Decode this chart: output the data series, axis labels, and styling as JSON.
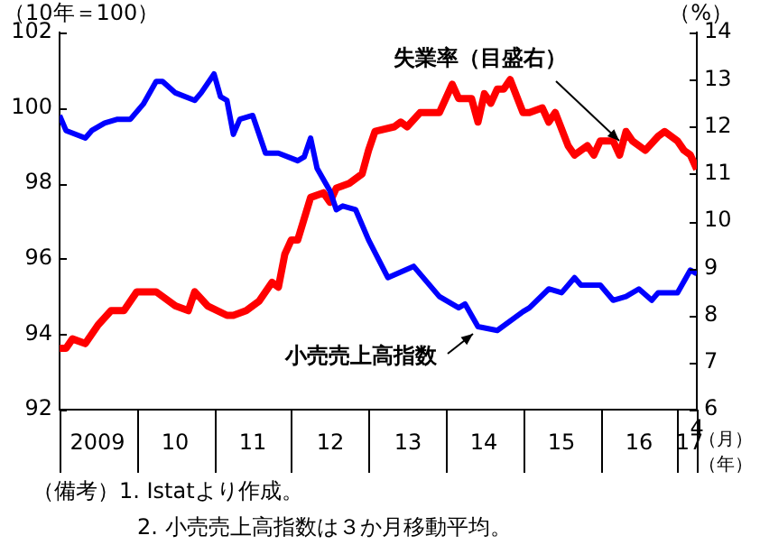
{
  "chart_data": {
    "type": "line",
    "ylabel": "（10年＝100）",
    "y2label": "（%）",
    "xlim": [
      "2009-01",
      "2017-04"
    ],
    "xticks": [
      {
        "value": "2009-07",
        "label": "2009"
      },
      {
        "value": "2010-07",
        "label": "10"
      },
      {
        "value": "2011-07",
        "label": "11"
      },
      {
        "value": "2012-07",
        "label": "12"
      },
      {
        "value": "2013-07",
        "label": "13"
      },
      {
        "value": "2014-07",
        "label": "14"
      },
      {
        "value": "2015-07",
        "label": "15"
      },
      {
        "value": "2016-07",
        "label": "16"
      },
      {
        "value": "2017-03",
        "label": "17"
      }
    ],
    "ylim": [
      92,
      102
    ],
    "yticks": [
      92,
      94,
      96,
      98,
      100,
      102
    ],
    "y2lim": [
      6,
      14
    ],
    "y2ticks": [
      6,
      7,
      8,
      9,
      10,
      11,
      12,
      13,
      14
    ],
    "grid": false,
    "legend": false,
    "marker": "none",
    "series": [
      {
        "name": "小売売上高指数",
        "color": "#0000ff",
        "x": [
          "2009-01",
          "2009-02",
          "2009-05",
          "2009-06",
          "2009-08",
          "2009-10",
          "2009-12",
          "2010-02",
          "2010-04",
          "2010-05",
          "2010-07",
          "2010-10",
          "2010-11",
          "2011-01",
          "2011-02",
          "2011-03",
          "2011-04",
          "2011-05",
          "2011-07",
          "2011-09",
          "2011-11",
          "2012-02",
          "2012-03",
          "2012-04",
          "2012-05",
          "2012-07",
          "2012-08",
          "2012-09",
          "2012-11",
          "2013-01",
          "2013-04",
          "2013-08",
          "2013-12",
          "2014-03",
          "2014-04",
          "2014-06",
          "2014-09",
          "2015-01",
          "2015-02",
          "2015-05",
          "2015-07",
          "2015-09",
          "2015-10",
          "2016-01",
          "2016-03",
          "2016-05",
          "2016-07",
          "2016-09",
          "2016-10",
          "2017-01",
          "2017-03",
          "2017-04"
        ],
        "values": [
          99.8,
          99.4,
          99.2,
          99.4,
          99.6,
          99.7,
          99.7,
          100.1,
          100.7,
          100.7,
          100.4,
          100.2,
          100.4,
          100.9,
          100.3,
          100.2,
          99.3,
          99.7,
          99.8,
          98.8,
          98.8,
          98.6,
          98.7,
          99.2,
          98.4,
          97.8,
          97.3,
          97.4,
          97.3,
          96.5,
          95.5,
          95.8,
          95.0,
          94.7,
          94.8,
          94.2,
          94.1,
          94.6,
          94.7,
          95.2,
          95.1,
          95.5,
          95.3,
          95.3,
          94.9,
          95.0,
          95.2,
          94.9,
          95.1,
          95.1,
          95.7,
          95.6
        ]
      },
      {
        "name": "失業率（目盛右）",
        "color": "#ff0000",
        "axis": "y2",
        "x": [
          "2009-01",
          "2009-02",
          "2009-03",
          "2009-05",
          "2009-07",
          "2009-09",
          "2009-11",
          "2010-01",
          "2010-02",
          "2010-04",
          "2010-07",
          "2010-09",
          "2010-10",
          "2010-12",
          "2011-03",
          "2011-04",
          "2011-06",
          "2011-08",
          "2011-10",
          "2011-11",
          "2011-12",
          "2012-01",
          "2012-02",
          "2012-04",
          "2012-06",
          "2012-07",
          "2012-08",
          "2012-10",
          "2012-12",
          "2013-01",
          "2013-02",
          "2013-05",
          "2013-06",
          "2013-07",
          "2013-09",
          "2013-12",
          "2014-02",
          "2014-03",
          "2014-05",
          "2014-06",
          "2014-07",
          "2014-08",
          "2014-09",
          "2014-10",
          "2014-11",
          "2015-01",
          "2015-02",
          "2015-04",
          "2015-05",
          "2015-06",
          "2015-08",
          "2015-09",
          "2015-11",
          "2015-12",
          "2016-01",
          "2016-03",
          "2016-04",
          "2016-05",
          "2016-06",
          "2016-08",
          "2016-10",
          "2016-11",
          "2017-01",
          "2017-02",
          "2017-03",
          "2017-04"
        ],
        "values": [
          7.3,
          7.3,
          7.5,
          7.4,
          7.8,
          8.1,
          8.1,
          8.5,
          8.5,
          8.5,
          8.2,
          8.1,
          8.5,
          8.2,
          8.0,
          8.0,
          8.1,
          8.3,
          8.7,
          8.6,
          9.3,
          9.6,
          9.6,
          10.5,
          10.6,
          10.4,
          10.7,
          10.8,
          11.0,
          11.5,
          11.9,
          12.0,
          12.1,
          12.0,
          12.3,
          12.3,
          12.9,
          12.6,
          12.6,
          12.1,
          12.7,
          12.5,
          12.8,
          12.8,
          13.0,
          12.3,
          12.3,
          12.4,
          12.1,
          12.3,
          11.6,
          11.4,
          11.6,
          11.4,
          11.7,
          11.7,
          11.4,
          11.9,
          11.7,
          11.5,
          11.8,
          11.9,
          11.7,
          11.5,
          11.4,
          11.1
        ]
      }
    ],
    "annotations": [
      "4",
      "（月）",
      "（年）",
      "（備考）1. Istatより作成。",
      "2. 小売売上高指数は３か月移動平均。"
    ]
  }
}
